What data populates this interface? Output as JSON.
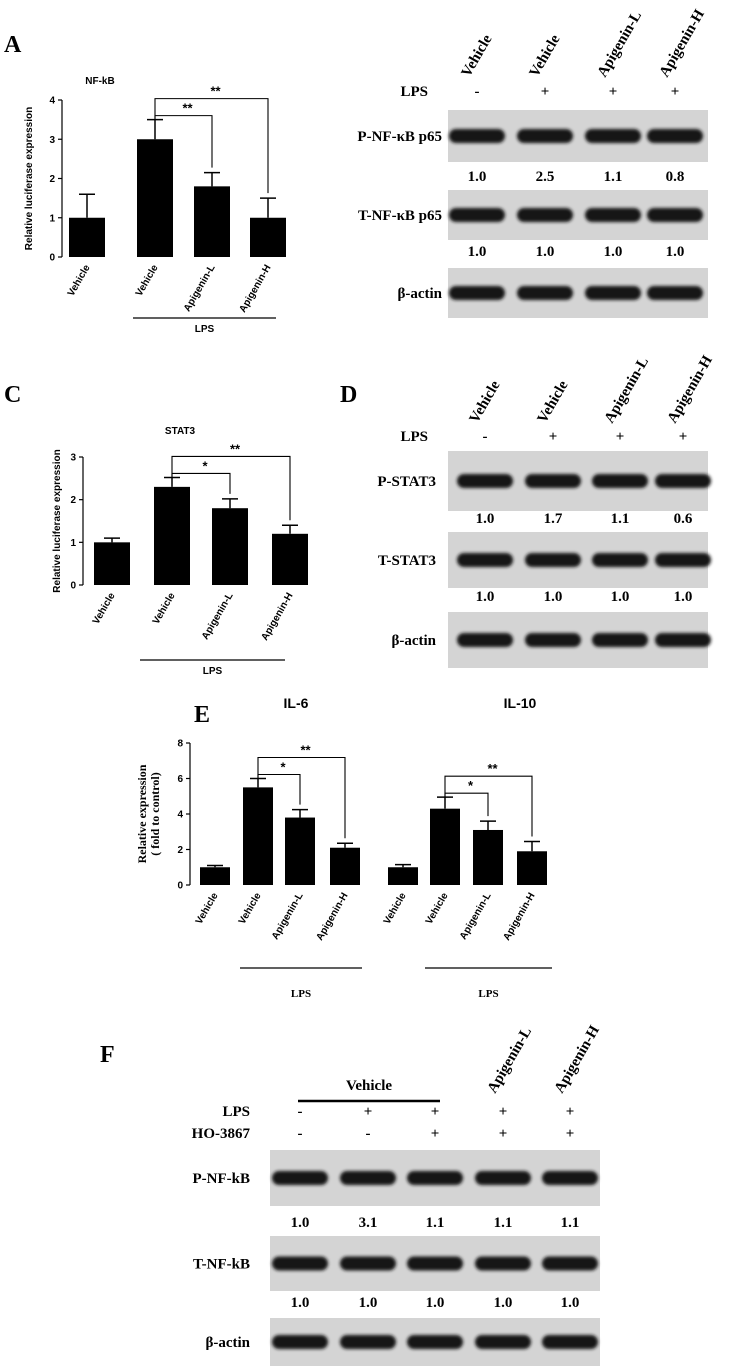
{
  "panel_labels": [
    "A",
    "C",
    "D",
    "E",
    "F"
  ],
  "chart_data": [
    {
      "type": "bar",
      "title": "NF-kB",
      "y_label": "Relative luciferase expression",
      "categories": [
        "Vehicle",
        "Vehicle",
        "Apigenin-L",
        "Apigenin-H"
      ],
      "values": [
        1.0,
        3.0,
        1.8,
        1.0
      ],
      "errors": [
        0.6,
        0.5,
        0.35,
        0.5
      ],
      "color": "#000000",
      "ylim": [
        0,
        4
      ],
      "yticks": [
        0,
        1,
        2,
        3,
        4
      ],
      "group_label": "LPS",
      "annotations": [
        "**",
        "**"
      ]
    },
    {
      "type": "bar",
      "title": "STAT3",
      "y_label": "Relative luciferase expression",
      "categories": [
        "Vehicle",
        "Vehicle",
        "Apigenin-L",
        "Apigenin-H"
      ],
      "values": [
        1.0,
        2.3,
        1.8,
        1.2
      ],
      "errors": [
        0.1,
        0.22,
        0.22,
        0.2
      ],
      "color": "#000000",
      "ylim": [
        0,
        3
      ],
      "yticks": [
        0,
        1,
        2,
        3
      ],
      "group_label": "LPS",
      "annotations": [
        "*",
        "**"
      ]
    },
    {
      "type": "bar",
      "y_label": [
        "Relative expression",
        "( fold to control)"
      ],
      "color": "#000000",
      "ylim": [
        0,
        8
      ],
      "yticks": [
        0,
        2,
        4,
        6,
        8
      ],
      "groups": [
        {
          "title": "IL-6",
          "categories": [
            "Vehicle",
            "Vehicle",
            "Apigenin-L",
            "Apigenin-H"
          ],
          "values": [
            1.0,
            5.5,
            3.8,
            2.1
          ],
          "errors": [
            0.1,
            0.5,
            0.45,
            0.25
          ],
          "group_label": "LPS",
          "annotations": [
            "*",
            "**"
          ]
        },
        {
          "title": "IL-10",
          "categories": [
            "Vehicle",
            "Vehicle",
            "Apigenin-L",
            "Apigenin-H"
          ],
          "values": [
            1.0,
            4.3,
            3.1,
            1.9
          ],
          "errors": [
            0.15,
            0.65,
            0.5,
            0.55
          ],
          "group_label": "LPS",
          "annotations": [
            "*",
            "**"
          ]
        }
      ]
    }
  ],
  "blots": [
    {
      "lane_labels": [
        "Vehicle",
        "Vehicle",
        "Apigenin-L",
        "Apigenin-H"
      ],
      "treatments": [
        {
          "label": "LPS",
          "signs": [
            "-",
            "+",
            "+",
            "+"
          ]
        }
      ],
      "rows": [
        {
          "label": "P-NF-κB p65",
          "quant": [
            "1.0",
            "2.5",
            "1.1",
            "0.8"
          ]
        },
        {
          "label": "T-NF-κB p65",
          "quant": [
            "1.0",
            "1.0",
            "1.0",
            "1.0"
          ]
        },
        {
          "label": "β-actin"
        }
      ]
    },
    {
      "lane_labels": [
        "Vehicle",
        "Vehicle",
        "Apigenin-L",
        "Apigenin-H"
      ],
      "treatments": [
        {
          "label": "LPS",
          "signs": [
            "-",
            "+",
            "+",
            "+"
          ]
        }
      ],
      "rows": [
        {
          "label": "P-STAT3",
          "quant": [
            "1.0",
            "1.7",
            "1.1",
            "0.6"
          ]
        },
        {
          "label": "T-STAT3",
          "quant": [
            "1.0",
            "1.0",
            "1.0",
            "1.0"
          ]
        },
        {
          "label": "β-actin"
        }
      ]
    },
    {
      "group_label": "Vehicle",
      "lane_labels": [
        null,
        null,
        null,
        "Apigenin-L",
        "Apigenin-H"
      ],
      "treatments": [
        {
          "label": "LPS",
          "signs": [
            "-",
            "+",
            "+",
            "+",
            "+"
          ]
        },
        {
          "label": "HO-3867",
          "signs": [
            "-",
            "-",
            "+",
            "+",
            "+"
          ]
        }
      ],
      "rows": [
        {
          "label": "P-NF-kB",
          "quant": [
            "1.0",
            "3.1",
            "1.1",
            "1.1",
            "1.1"
          ]
        },
        {
          "label": "T-NF-kB",
          "quant": [
            "1.0",
            "1.0",
            "1.0",
            "1.0",
            "1.0"
          ]
        },
        {
          "label": "β-actin"
        }
      ]
    }
  ]
}
